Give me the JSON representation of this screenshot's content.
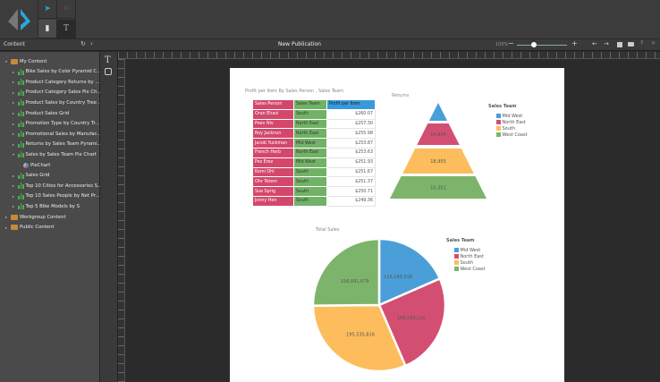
{
  "toolbar": {
    "zoom": "100%",
    "zoom_fraction": 0.35
  },
  "panel": {
    "title": "Content"
  },
  "publication": {
    "title": "New Publication"
  },
  "tree": [
    {
      "label": "My Content",
      "level": 0,
      "type": "folder",
      "expanded": true
    },
    {
      "label": "Bike Sales by Color Pyramid C...",
      "level": 1,
      "type": "report"
    },
    {
      "label": "Product Category Returns by ...",
      "level": 1,
      "type": "report"
    },
    {
      "label": "Product Category Sales Pie Ch...",
      "level": 1,
      "type": "report"
    },
    {
      "label": "Product Sales by Country Tree ...",
      "level": 1,
      "type": "report"
    },
    {
      "label": "Product Sales Grid",
      "level": 1,
      "type": "report"
    },
    {
      "label": "Promotion Type by Country Tr...",
      "level": 1,
      "type": "report"
    },
    {
      "label": "Promotional Sales by Manufac...",
      "level": 1,
      "type": "report"
    },
    {
      "label": "Returns by Sales Team Pyrami...",
      "level": 1,
      "type": "report"
    },
    {
      "label": "Sales by Sales Team Pie Chart",
      "level": 1,
      "type": "report",
      "expanded": true
    },
    {
      "label": "PieChart",
      "level": 2,
      "type": "chart"
    },
    {
      "label": "Sales Grid",
      "level": 1,
      "type": "report"
    },
    {
      "label": "Top 10 Cities for Accessories S...",
      "level": 1,
      "type": "report"
    },
    {
      "label": "Top 10 Sales People by Net Pr...",
      "level": 1,
      "type": "report"
    },
    {
      "label": "Top 5 Bike Models by S",
      "level": 1,
      "type": "report"
    },
    {
      "label": "Workgroup Content",
      "level": 0,
      "type": "folder"
    },
    {
      "label": "Public Content",
      "level": 0,
      "type": "folder"
    }
  ],
  "grid": {
    "title": "Profit per Item By Sales Person , Sales Team",
    "headers": [
      "Sales Person",
      "Sales Team",
      "Profit per Item"
    ],
    "rows": [
      [
        "Oran Ehavi",
        "South",
        "$260.07"
      ],
      [
        "Peev Niv",
        "North East",
        "$257.30"
      ],
      [
        "Roy Jacknun",
        "North East",
        "$255.98"
      ],
      [
        "Jacob Yuckman",
        "Mid West",
        "$253.87"
      ],
      [
        "French Herb",
        "North East",
        "$253.63"
      ],
      [
        "Pez Erez",
        "Mid West",
        "$251.93"
      ],
      [
        "Komi Ohl",
        "South",
        "$251.67"
      ],
      [
        "Ohr Totem",
        "South",
        "$251.37"
      ],
      [
        "Sue Sprig",
        "South",
        "$250.71"
      ],
      [
        "Jonny Hen",
        "South",
        "$249.36"
      ]
    ],
    "colors": {
      "person": "#d4476b",
      "team": "#72b266",
      "profit_header": "#3a9ad9"
    }
  },
  "chart_data": [
    {
      "type": "pyramid",
      "title": "Returns",
      "legend_title": "Sales Team",
      "legend_position": "right",
      "categories": [
        "Mid West",
        "North East",
        "South",
        "West Coast"
      ],
      "labels": [
        "",
        "14,934",
        "18,955",
        "15,351"
      ],
      "colors": [
        "#4a9fd8",
        "#d34f72",
        "#fdbd5c",
        "#7db46c"
      ]
    },
    {
      "type": "pie",
      "title": "Total Sales",
      "legend_title": "Sales Team",
      "legend_position": "right",
      "categories": [
        "Mid West",
        "North East",
        "South",
        "West Coast"
      ],
      "values": [
        115160518,
        156289110,
        195535816,
        156891079
      ],
      "labels": [
        "115,160,518",
        "156,289,110",
        "195,535,816",
        "156,891,079"
      ],
      "colors": [
        "#4a9fd8",
        "#d34f72",
        "#fdbd5c",
        "#7db46c"
      ]
    }
  ]
}
